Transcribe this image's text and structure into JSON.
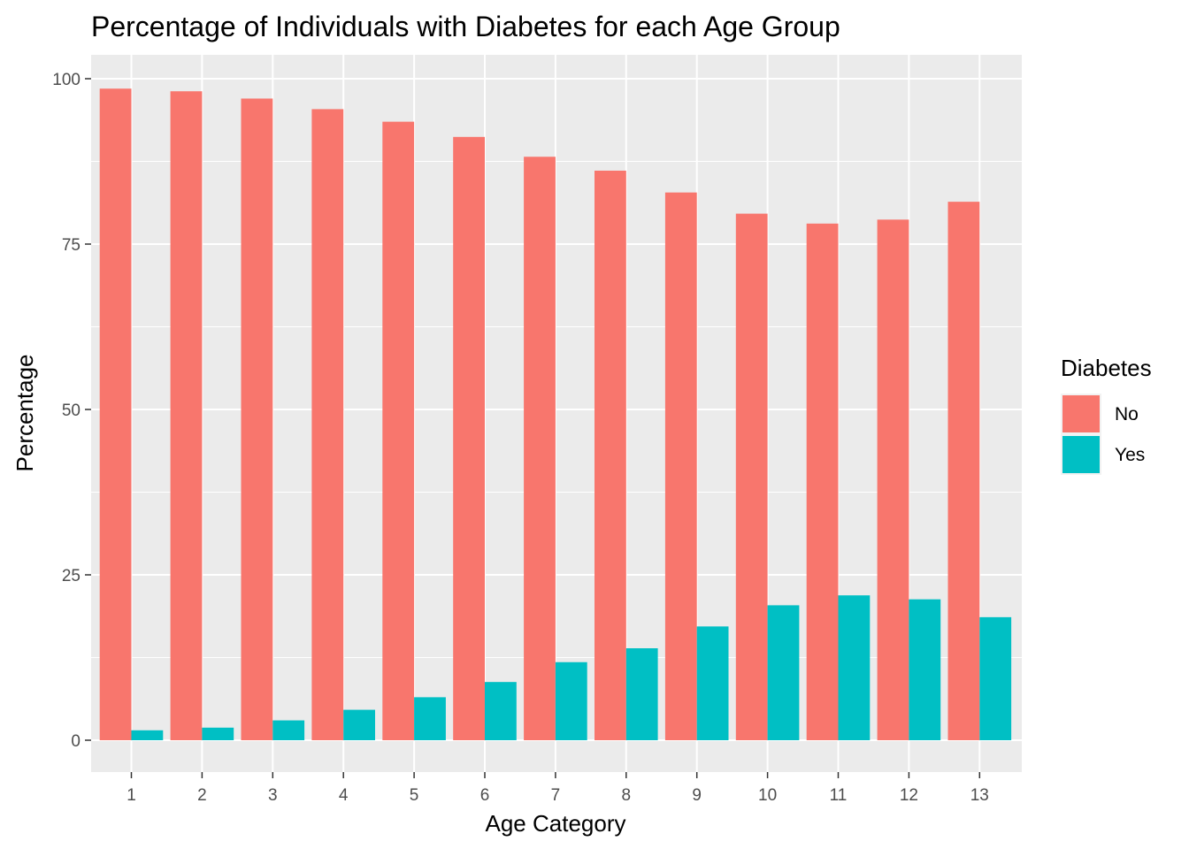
{
  "chart_data": {
    "type": "bar",
    "title": "Percentage of Individuals with Diabetes for each Age Group",
    "xlabel": "Age Category",
    "ylabel": "Percentage",
    "categories": [
      "1",
      "2",
      "3",
      "4",
      "5",
      "6",
      "7",
      "8",
      "9",
      "10",
      "11",
      "12",
      "13"
    ],
    "series": [
      {
        "name": "No",
        "color": "#F8766D",
        "values": [
          98.5,
          98.1,
          97.0,
          95.4,
          93.5,
          91.2,
          88.2,
          86.1,
          82.8,
          79.6,
          78.1,
          78.7,
          81.4
        ]
      },
      {
        "name": "Yes",
        "color": "#00BFC4",
        "values": [
          1.5,
          1.9,
          3.0,
          4.6,
          6.5,
          8.8,
          11.8,
          13.9,
          17.2,
          20.4,
          21.9,
          21.3,
          18.6
        ]
      }
    ],
    "ylim": [
      0,
      100
    ],
    "yticks": [
      0,
      25,
      50,
      75,
      100
    ],
    "grid": true,
    "legend": {
      "title": "Diabetes",
      "position": "right"
    }
  }
}
